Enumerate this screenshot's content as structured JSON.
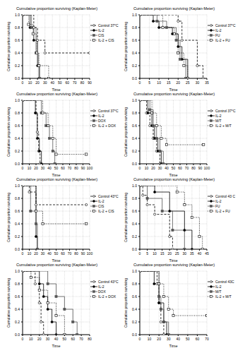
{
  "chart_data": [
    {
      "type": "step",
      "title": "Cumulative proportion surviving (Kaplan-Meier)",
      "x_label": "Time",
      "y_label": "Cumulative proportion surviving",
      "xlim": [
        0,
        90
      ],
      "xticks": [
        0,
        10,
        20,
        30,
        40,
        50,
        60,
        70,
        80,
        90
      ],
      "ylim": [
        0,
        1
      ],
      "yticks": [
        {
          "value": 0,
          "label": "0.0"
        },
        0.2,
        0.4,
        0.6,
        0.8,
        {
          "value": 1,
          "label": "1.0"
        }
      ],
      "grid": true,
      "legend": "right",
      "series": [
        {
          "name": "Control 37°C",
          "color": "#000000",
          "line_style": "dashed",
          "marker": "open_circle",
          "x": [
            0,
            15,
            20,
            30,
            90
          ],
          "values": [
            1,
            0.8,
            0.6,
            0.4,
            0.4
          ]
        },
        {
          "name": "IL-2",
          "color": "#000000",
          "line_style": "solid",
          "marker": "circle",
          "x": [
            0,
            10,
            15,
            20,
            22
          ],
          "values": [
            1,
            0.8,
            0.6,
            0.2,
            0
          ]
        },
        {
          "name": "CIS",
          "color": "#555555",
          "line_style": "solid",
          "marker": "square",
          "x": [
            0,
            12,
            18,
            21,
            23
          ],
          "values": [
            1,
            0.8,
            0.4,
            0.2,
            0
          ]
        },
        {
          "name": "IL-2 + CIS",
          "color": "#000000",
          "line_style": "dotted",
          "marker": "open_square",
          "x": [
            0,
            8,
            14,
            19,
            22,
            35
          ],
          "values": [
            1,
            0.85,
            0.7,
            0.4,
            0.2,
            0
          ]
        }
      ]
    },
    {
      "type": "step",
      "title": "Cumulative proportion surviving (Kaplan-Meier)",
      "x_label": "Time",
      "y_label": "Cumulative proportion surviving",
      "xlim": [
        0,
        35
      ],
      "xticks": [
        0,
        5,
        10,
        15,
        20,
        25,
        30,
        35
      ],
      "ylim": [
        0,
        1
      ],
      "yticks": [
        {
          "value": 0,
          "label": "0.0"
        },
        0.2,
        0.4,
        0.6,
        0.8,
        {
          "value": 1,
          "label": "1.0"
        }
      ],
      "grid": true,
      "legend": "right",
      "series": [
        {
          "name": "Control 37°C",
          "color": "#000000",
          "line_style": "dashed",
          "marker": "open_circle",
          "x": [
            0,
            20,
            22,
            30,
            33
          ],
          "values": [
            1,
            0.9,
            0.6,
            0.2,
            0
          ]
        },
        {
          "name": "IL-2",
          "color": "#000000",
          "line_style": "solid",
          "marker": "circle",
          "x": [
            0,
            7,
            10,
            17,
            20,
            22,
            25
          ],
          "values": [
            1,
            0.9,
            0.8,
            0.7,
            0.5,
            0.3,
            0
          ]
        },
        {
          "name": "FU",
          "color": "#555555",
          "line_style": "solid",
          "marker": "square",
          "x": [
            0,
            9,
            14,
            19,
            21,
            24
          ],
          "values": [
            1,
            0.9,
            0.8,
            0.6,
            0.3,
            0
          ]
        },
        {
          "name": "IL-2 + FU",
          "color": "#000000",
          "line_style": "dotted",
          "marker": "open_square",
          "x": [
            0,
            12,
            18,
            20,
            23,
            25
          ],
          "values": [
            1,
            0.8,
            0.7,
            0.4,
            0.2,
            0
          ]
        }
      ]
    },
    {
      "type": "step",
      "title": "Cumulative proportion surviving (Kaplan-Meier)",
      "x_label": "Time",
      "y_label": "Cumulative proportion surviving",
      "xlim": [
        0,
        100
      ],
      "xticks": [
        0,
        10,
        20,
        30,
        40,
        50,
        60,
        70,
        80,
        90,
        100
      ],
      "ylim": [
        0,
        1
      ],
      "yticks": [
        {
          "value": 0,
          "label": "0.0"
        },
        0.2,
        0.4,
        0.6,
        0.8,
        {
          "value": 1,
          "label": "1.0"
        }
      ],
      "grid": true,
      "legend": "right",
      "series": [
        {
          "name": "Control 37°C",
          "color": "#000000",
          "line_style": "dashed",
          "marker": "open_circle",
          "x": [
            0,
            20,
            22,
            24,
            26
          ],
          "values": [
            1,
            0.8,
            0.5,
            0.2,
            0
          ]
        },
        {
          "name": "IL-2",
          "color": "#000000",
          "line_style": "solid",
          "marker": "circle",
          "x": [
            0,
            19,
            22,
            25,
            28
          ],
          "values": [
            1,
            0.8,
            0.4,
            0.2,
            0
          ]
        },
        {
          "name": "DOX",
          "color": "#555555",
          "line_style": "solid",
          "marker": "square",
          "x": [
            0,
            28,
            35,
            40,
            45,
            48
          ],
          "values": [
            1,
            0.8,
            0.6,
            0.4,
            0.2,
            0
          ]
        },
        {
          "name": "IL-2 + DOX",
          "color": "#000000",
          "line_style": "dotted",
          "marker": "open_square",
          "x": [
            0,
            30,
            38,
            45,
            50,
            95
          ],
          "values": [
            1,
            0.8,
            0.6,
            0.4,
            0.15,
            0.15
          ]
        }
      ]
    },
    {
      "type": "step",
      "title": "Cumulative proportion surviving (Kaplan-Meier)",
      "x_label": "Time",
      "y_label": "Cumulative proportion surviving",
      "xlim": [
        0,
        100
      ],
      "xticks": [
        0,
        10,
        20,
        30,
        40,
        50,
        60,
        70,
        80,
        90,
        100
      ],
      "ylim": [
        0,
        1
      ],
      "yticks": [
        {
          "value": 0,
          "label": "0.0"
        },
        0.2,
        0.4,
        0.6,
        0.8,
        {
          "value": 1,
          "label": "1.0"
        }
      ],
      "grid": true,
      "legend": "right",
      "series": [
        {
          "name": "Control 37°C",
          "color": "#000000",
          "line_style": "dashed",
          "marker": "open_circle",
          "x": [
            0,
            10,
            15,
            20,
            25,
            30
          ],
          "values": [
            1,
            0.8,
            0.6,
            0.4,
            0.2,
            0
          ]
        },
        {
          "name": "IL-2",
          "color": "#000000",
          "line_style": "solid",
          "marker": "circle",
          "x": [
            0,
            12,
            18,
            22,
            27,
            32
          ],
          "values": [
            1,
            0.8,
            0.6,
            0.4,
            0.2,
            0
          ]
        },
        {
          "name": "M/T",
          "color": "#555555",
          "line_style": "solid",
          "marker": "square",
          "x": [
            0,
            15,
            20,
            25,
            30,
            35
          ],
          "values": [
            1,
            0.85,
            0.6,
            0.4,
            0.2,
            0
          ]
        },
        {
          "name": "IL-2 + M/T",
          "color": "#000000",
          "line_style": "dotted",
          "marker": "open_square",
          "x": [
            0,
            18,
            25,
            32,
            40,
            95
          ],
          "values": [
            1,
            0.8,
            0.6,
            0.4,
            0.3,
            0.3
          ]
        }
      ]
    },
    {
      "type": "step",
      "title": "Cumulative proportion surviving (Kaplan-Meier)",
      "x_label": "Time",
      "y_label": "Cumulative proportion surviving",
      "xlim": [
        0,
        100
      ],
      "xticks": [
        0,
        10,
        20,
        30,
        40,
        50,
        60,
        70,
        80,
        90,
        100
      ],
      "ylim": [
        0,
        1
      ],
      "yticks": [
        {
          "value": 0,
          "label": "0.0"
        },
        0.2,
        0.4,
        0.6,
        0.8,
        {
          "value": 1,
          "label": "1.0"
        }
      ],
      "grid": true,
      "legend": "right",
      "series": [
        {
          "name": "Control 43°C",
          "color": "#000000",
          "line_style": "dashed",
          "marker": "open_circle",
          "x": [
            0,
            10,
            20,
            95
          ],
          "values": [
            1,
            0.9,
            0.7,
            0.7
          ]
        },
        {
          "name": "IL-2",
          "color": "#000000",
          "line_style": "solid",
          "marker": "circle",
          "x": [
            0,
            20,
            22
          ],
          "values": [
            1,
            0.2,
            0
          ]
        },
        {
          "name": "CIS",
          "color": "#555555",
          "line_style": "solid",
          "marker": "square",
          "x": [
            0,
            12,
            20,
            22
          ],
          "values": [
            1,
            0.6,
            0.4,
            0
          ]
        },
        {
          "name": "IL-2 + CIS",
          "color": "#000000",
          "line_style": "dotted",
          "marker": "open_square",
          "x": [
            0,
            20,
            30,
            95
          ],
          "values": [
            1,
            0.6,
            0.4,
            0.4
          ]
        }
      ]
    },
    {
      "type": "step",
      "title": "Cumulative proportion surviving (Kaplan-Meier)",
      "x_label": "Time",
      "y_label": "Cumulative proportion surviving",
      "xlim": [
        0,
        45
      ],
      "xticks": [
        0,
        5,
        10,
        15,
        20,
        25,
        30,
        35,
        40,
        45
      ],
      "ylim": [
        0,
        1
      ],
      "yticks": [
        {
          "value": 0,
          "label": "0.0"
        },
        0.2,
        0.4,
        0.6,
        0.8,
        {
          "value": 1,
          "label": "1.0"
        }
      ],
      "grid": true,
      "legend": "right",
      "series": [
        {
          "name": "Control 43 C",
          "color": "#000000",
          "line_style": "dashed",
          "marker": "open_circle",
          "x": [
            0,
            2,
            5,
            10,
            20,
            22
          ],
          "values": [
            1,
            0.85,
            0.7,
            0.55,
            0.2,
            0
          ]
        },
        {
          "name": "IL-2",
          "color": "#000000",
          "line_style": "solid",
          "marker": "circle",
          "x": [
            0,
            10,
            20,
            30,
            35
          ],
          "values": [
            1,
            0.9,
            0.6,
            0.3,
            0
          ]
        },
        {
          "name": "FU",
          "color": "#555555",
          "line_style": "solid",
          "marker": "square",
          "x": [
            0,
            5,
            15,
            22,
            30
          ],
          "values": [
            1,
            0.8,
            0.6,
            0.3,
            0
          ]
        },
        {
          "name": "IL-2 + FU",
          "color": "#000000",
          "line_style": "dotted",
          "marker": "open_square",
          "x": [
            0,
            25,
            30,
            35,
            40,
            42
          ],
          "values": [
            1,
            0.9,
            0.7,
            0.5,
            0.2,
            0
          ]
        }
      ]
    },
    {
      "type": "step",
      "title": "Cumulative proportion surviving (Kaplan-Meier)",
      "x_label": "Time",
      "y_label": "Cumulative proportion surviving",
      "xlim": [
        0,
        80
      ],
      "xticks": [
        0,
        10,
        20,
        30,
        40,
        50,
        60,
        70,
        80
      ],
      "ylim": [
        0,
        1
      ],
      "yticks": [
        {
          "value": 0,
          "label": "0.0"
        },
        0.2,
        0.4,
        0.6,
        0.8,
        {
          "value": 1,
          "label": "1.0"
        }
      ],
      "grid": true,
      "legend": "right",
      "series": [
        {
          "name": "Control 43°C",
          "color": "#000000",
          "line_style": "dashed",
          "marker": "open_circle",
          "x": [
            0,
            15,
            20,
            22,
            25
          ],
          "values": [
            1,
            0.8,
            0.5,
            0.2,
            0
          ]
        },
        {
          "name": "IL-2",
          "color": "#000000",
          "line_style": "solid",
          "marker": "circle",
          "x": [
            0,
            20,
            25,
            30,
            35,
            40
          ],
          "values": [
            1,
            0.8,
            0.6,
            0.4,
            0.2,
            0
          ]
        },
        {
          "name": "DOX",
          "color": "#555555",
          "line_style": "solid",
          "marker": "square",
          "x": [
            0,
            30,
            40,
            50,
            60,
            65
          ],
          "values": [
            1,
            0.8,
            0.6,
            0.4,
            0.2,
            0
          ]
        },
        {
          "name": "IL-2 + DOX",
          "color": "#000000",
          "line_style": "dotted",
          "marker": "open_square",
          "x": [
            0,
            10,
            20,
            30,
            40,
            50
          ],
          "values": [
            1,
            0.9,
            0.7,
            0.5,
            0.3,
            0
          ]
        }
      ]
    },
    {
      "type": "step",
      "title": "Cumulative proportion surviving (Kaplan-Meier)",
      "x_label": "Time",
      "y_label": "Cumulative proportion surviving",
      "xlim": [
        0,
        70
      ],
      "xticks": [
        0,
        10,
        20,
        30,
        40,
        50,
        60,
        70
      ],
      "ylim": [
        0,
        1
      ],
      "yticks": [
        {
          "value": 0,
          "label": "0.0"
        },
        0.2,
        0.4,
        0.6,
        0.8,
        {
          "value": 1,
          "label": "1.0"
        }
      ],
      "grid": true,
      "legend": "right",
      "series": [
        {
          "name": "Control 43C",
          "color": "#000000",
          "line_style": "dashed",
          "marker": "open_circle",
          "x": [
            0,
            18,
            20,
            22,
            25
          ],
          "values": [
            1,
            0.8,
            0.5,
            0.2,
            0
          ]
        },
        {
          "name": "IL-2",
          "color": "#000000",
          "line_style": "solid",
          "marker": "circle",
          "x": [
            0,
            15,
            20,
            25,
            28
          ],
          "values": [
            1,
            0.8,
            0.5,
            0.2,
            0
          ]
        },
        {
          "name": "M/T",
          "color": "#555555",
          "line_style": "solid",
          "marker": "square",
          "x": [
            0,
            20,
            22,
            25,
            30
          ],
          "values": [
            1,
            0.6,
            0.4,
            0.2,
            0
          ]
        },
        {
          "name": "IL-2 + M/T",
          "color": "#000000",
          "line_style": "dotted",
          "marker": "open_square",
          "x": [
            0,
            20,
            25,
            30,
            35,
            70
          ],
          "values": [
            1,
            0.8,
            0.6,
            0.4,
            0.3,
            0.3
          ]
        }
      ]
    }
  ]
}
